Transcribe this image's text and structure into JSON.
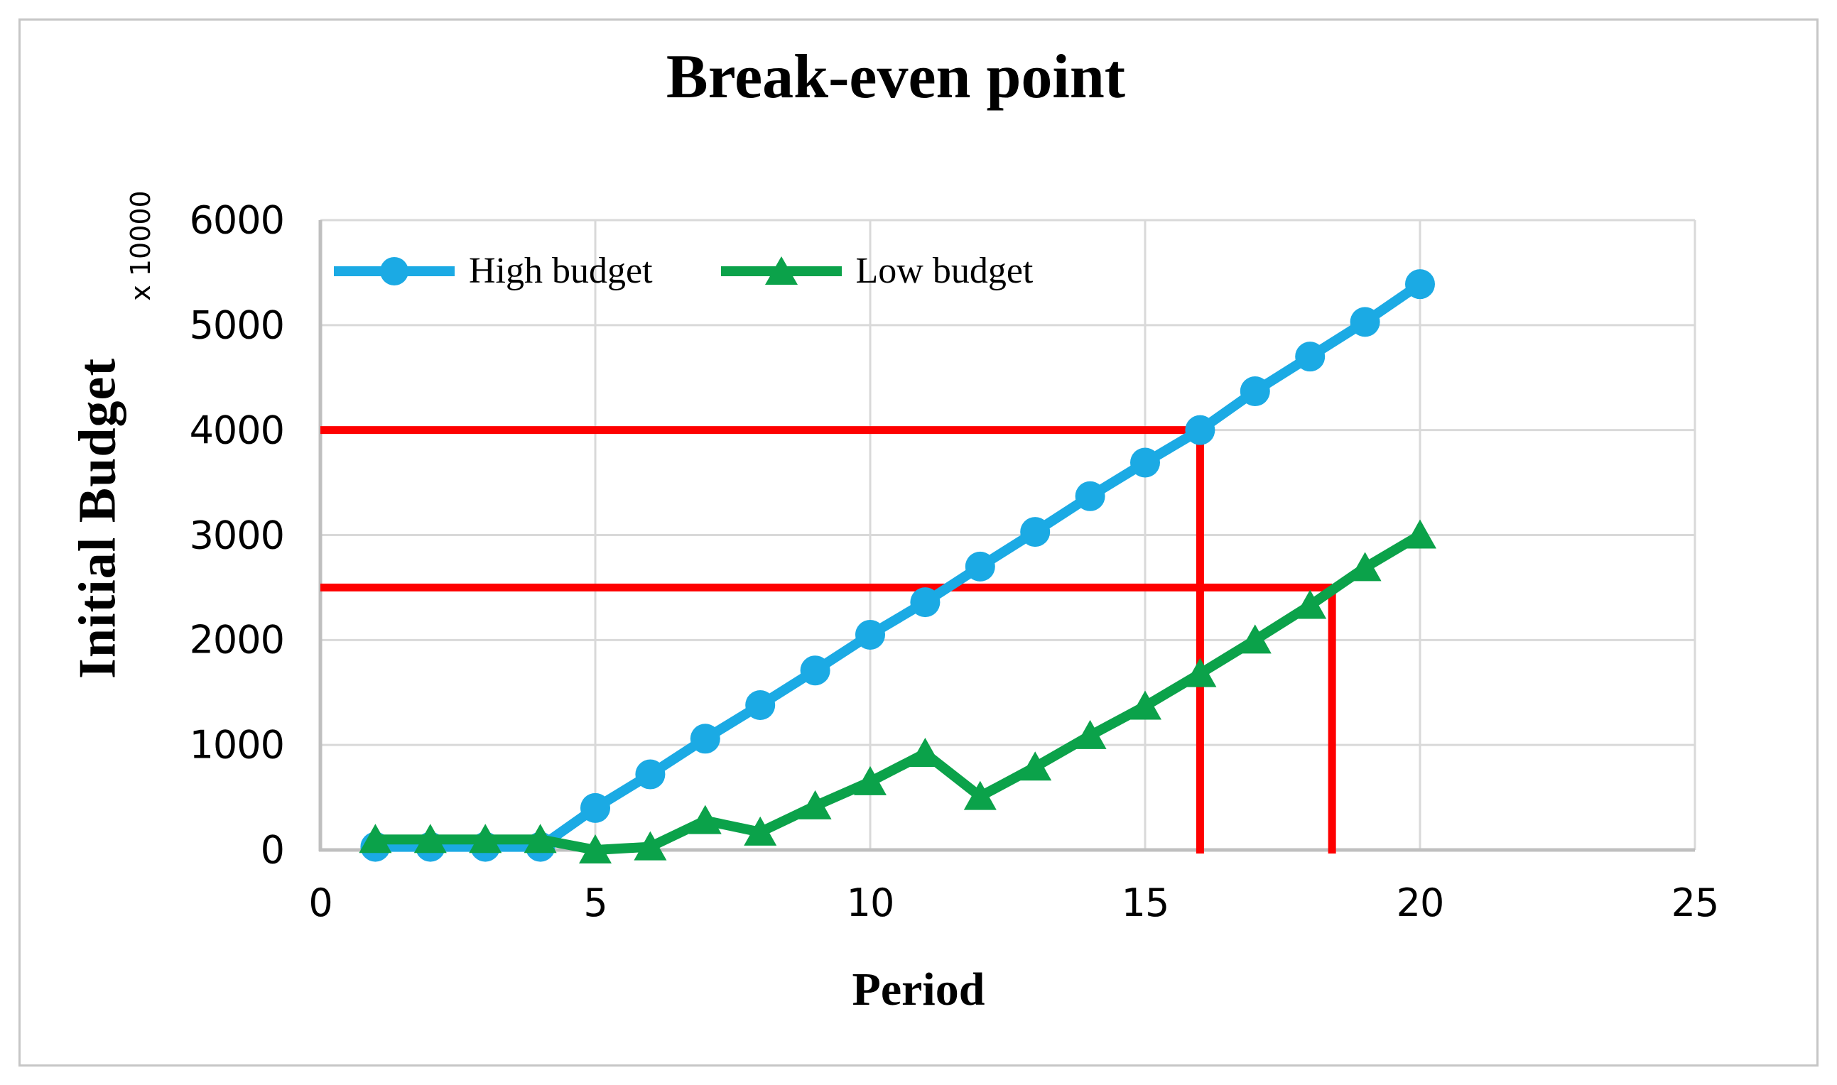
{
  "chart_data": {
    "type": "line",
    "title": "Break-even point",
    "xlabel": "Period",
    "ylabel": "Initial Budget",
    "ylabel_multiplier": "x 10000",
    "xlim": [
      0,
      25
    ],
    "ylim": [
      0,
      6000
    ],
    "x_ticks": [
      0,
      5,
      10,
      15,
      20,
      25
    ],
    "y_ticks": [
      0,
      1000,
      2000,
      3000,
      4000,
      5000,
      6000
    ],
    "grid": true,
    "legend_position": "inside-top-left",
    "x": [
      1,
      2,
      3,
      4,
      5,
      6,
      7,
      8,
      9,
      10,
      11,
      12,
      13,
      14,
      15,
      16,
      17,
      18,
      19,
      20
    ],
    "series": [
      {
        "name": "High budget",
        "color": "#1BAAE4",
        "marker": "circle",
        "values": [
          30,
          30,
          30,
          30,
          400,
          720,
          1060,
          1380,
          1710,
          2050,
          2360,
          2700,
          3030,
          3370,
          3690,
          4000,
          4370,
          4700,
          5030,
          5390
        ]
      },
      {
        "name": "Low budget",
        "color": "#0BA24A",
        "marker": "triangle",
        "values": [
          100,
          100,
          100,
          100,
          0,
          30,
          280,
          170,
          420,
          650,
          920,
          510,
          790,
          1090,
          1370,
          1680,
          2000,
          2330,
          2690,
          3000
        ]
      }
    ],
    "annotations": {
      "color": "#FE0000",
      "break_even_points": [
        {
          "series": "High budget",
          "period": 16,
          "value": 4000
        },
        {
          "series": "Low budget",
          "period": 18.4,
          "value": 2500
        }
      ],
      "lines": [
        {
          "type": "horizontal",
          "y": 4000,
          "x_from": 0,
          "x_to": 16
        },
        {
          "type": "vertical",
          "x": 16,
          "y_from": 0,
          "y_to": 4000
        },
        {
          "type": "horizontal",
          "y": 2500,
          "x_from": 0,
          "x_to": 18.4
        },
        {
          "type": "vertical",
          "x": 18.4,
          "y_from": 0,
          "y_to": 2500
        }
      ]
    },
    "colors": {
      "gridline": "#D9D9D9",
      "axis": "#BFBFBF",
      "frame_border": "#C6C6C6",
      "text": "#000000"
    }
  }
}
